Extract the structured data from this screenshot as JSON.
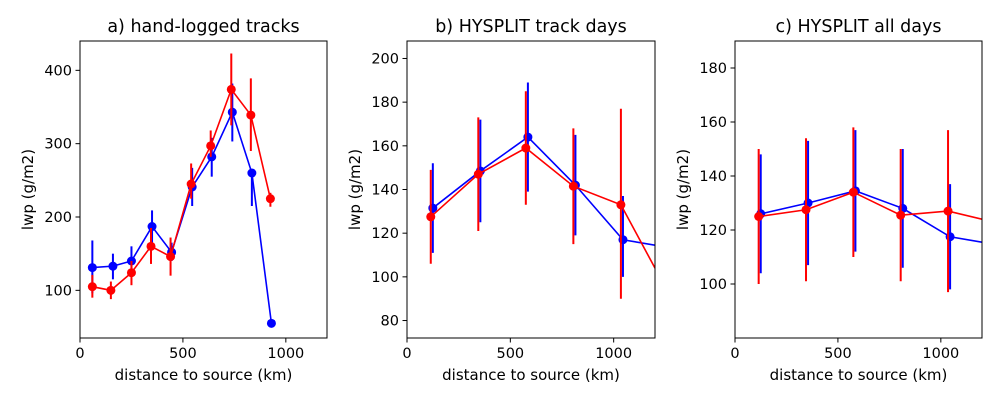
{
  "colors": {
    "red": "#ff0000",
    "blue": "#0000ff"
  },
  "chart_data": [
    {
      "type": "line",
      "title": "a) hand-logged tracks",
      "xlabel": "distance to source (km)",
      "ylabel": "lwp (g/m2)",
      "xlim": [
        0,
        1200
      ],
      "ylim": [
        35,
        440
      ],
      "xticks": [
        0,
        500,
        1000
      ],
      "yticks": [
        100,
        200,
        300,
        400
      ],
      "series": [
        {
          "name": "blue",
          "color": "#0000ff",
          "x": [
            60,
            160,
            250,
            350,
            445,
            545,
            640,
            740,
            835,
            930
          ],
          "y": [
            131,
            133,
            140,
            187,
            152,
            241,
            282,
            343,
            260,
            55
          ],
          "err_low": [
            96,
            115,
            120,
            165,
            140,
            215,
            255,
            303,
            215,
            50
          ],
          "err_high": [
            168,
            150,
            160,
            209,
            165,
            267,
            308,
            382,
            265,
            60
          ]
        },
        {
          "name": "red",
          "color": "#ff0000",
          "x": [
            60,
            150,
            250,
            345,
            440,
            540,
            635,
            735,
            830,
            925
          ],
          "y": [
            105,
            100,
            124,
            160,
            146,
            245,
            297,
            374,
            339,
            225
          ],
          "err_low": [
            90,
            88,
            107,
            136,
            120,
            225,
            282,
            325,
            290,
            214
          ],
          "err_high": [
            121,
            112,
            140,
            185,
            172,
            273,
            318,
            423,
            389,
            233
          ]
        }
      ]
    },
    {
      "type": "line",
      "title": "b) HYSPLIT track days",
      "xlabel": "distance to source (km)",
      "ylabel": "lwp (g/m2)",
      "xlim": [
        0,
        1200
      ],
      "ylim": [
        72,
        208
      ],
      "xticks": [
        0,
        500,
        1000
      ],
      "yticks": [
        80,
        100,
        120,
        140,
        160,
        180,
        200
      ],
      "series": [
        {
          "name": "blue",
          "color": "#0000ff",
          "x": [
            125,
            355,
            585,
            815,
            1045,
            1200
          ],
          "y": [
            131.5,
            148.5,
            164,
            142,
            117,
            114.5
          ],
          "markers": 5,
          "err_low": [
            111,
            125,
            139,
            119,
            100
          ],
          "err_high": [
            152,
            172,
            189,
            165,
            137
          ]
        },
        {
          "name": "red",
          "color": "#ff0000",
          "x": [
            115,
            345,
            575,
            805,
            1035,
            1200
          ],
          "y": [
            127.5,
            147,
            159,
            141.5,
            133,
            104
          ],
          "markers": 5,
          "err_low": [
            106,
            121,
            133,
            115,
            90
          ],
          "err_high": [
            149,
            173,
            185,
            168,
            177
          ]
        }
      ]
    },
    {
      "type": "line",
      "title": "c) HYSPLIT all days",
      "xlabel": "distance to source (km)",
      "ylabel": "lwp (g/m2)",
      "xlim": [
        0,
        1200
      ],
      "ylim": [
        80,
        190
      ],
      "xticks": [
        0,
        500,
        1000
      ],
      "yticks": [
        100,
        120,
        140,
        160,
        180
      ],
      "series": [
        {
          "name": "blue",
          "color": "#0000ff",
          "x": [
            125,
            355,
            585,
            815,
            1045,
            1200
          ],
          "y": [
            126,
            130,
            134.5,
            128,
            117.5,
            115.5
          ],
          "markers": 5,
          "err_low": [
            104,
            107,
            112,
            106,
            98
          ],
          "err_high": [
            148,
            153,
            157,
            150,
            137
          ]
        },
        {
          "name": "red",
          "color": "#ff0000",
          "x": [
            115,
            345,
            575,
            805,
            1035,
            1200
          ],
          "y": [
            125,
            127.5,
            134,
            125.5,
            127,
            124
          ],
          "markers": 5,
          "err_low": [
            100,
            101,
            110,
            101,
            97
          ],
          "err_high": [
            150,
            154,
            158,
            150,
            157
          ]
        }
      ]
    }
  ]
}
